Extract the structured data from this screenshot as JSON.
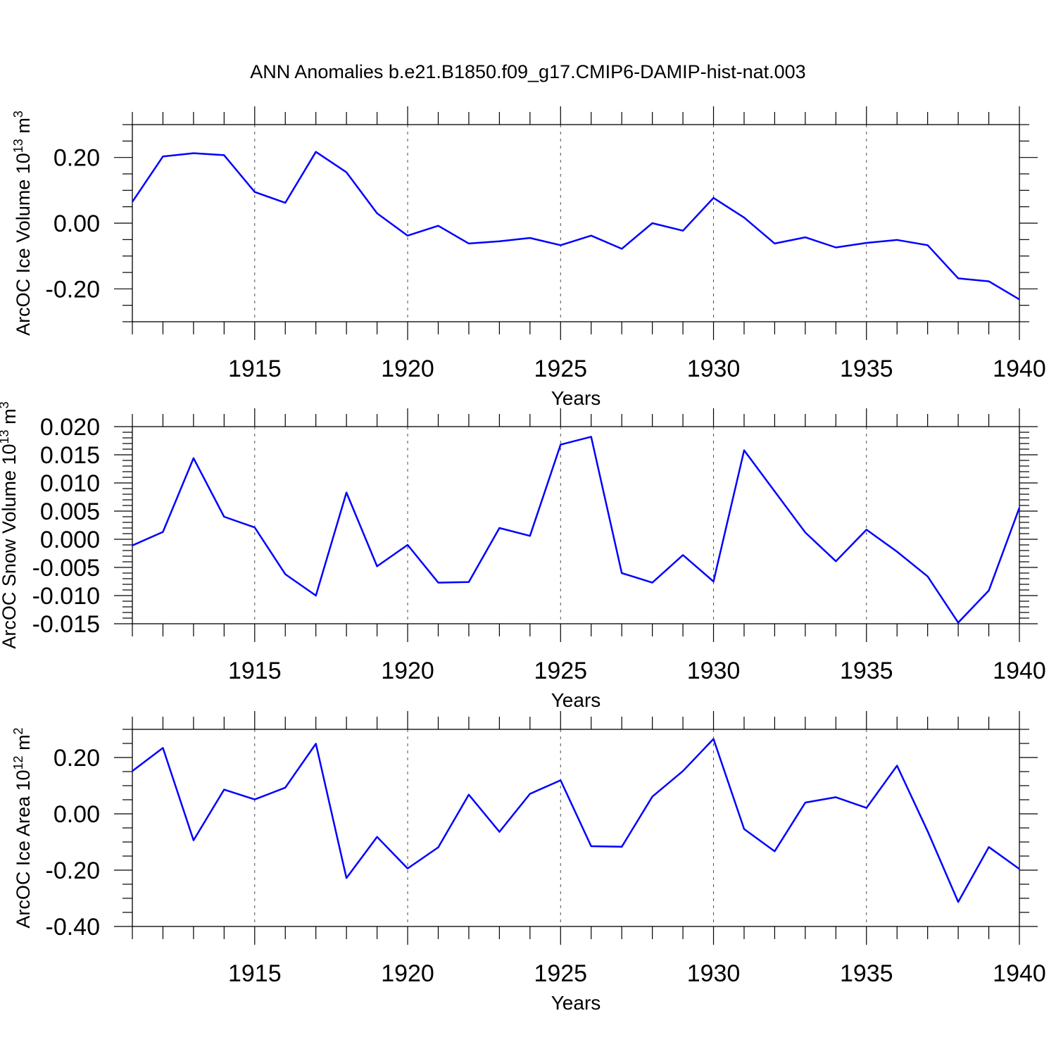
{
  "title": "ANN Anomalies b.e21.B1850.f09_g17.CMIP6-DAMIP-hist-nat.003",
  "colors": {
    "series": "#0000ff",
    "axis": "#000000"
  },
  "chart_data": [
    {
      "type": "line",
      "ylabel_main": "ArcOC Ice Volume 10",
      "ylabel_sup": "13",
      "ylabel_unit": " m",
      "ylabel_unit_sup": "3",
      "xlabel": "Years",
      "xlim": [
        1911,
        1940
      ],
      "ylim": [
        -0.3,
        0.3
      ],
      "x_ticks": [
        1915,
        1920,
        1925,
        1930,
        1935,
        1940
      ],
      "x_tick_labels": [
        "1915",
        "1920",
        "1925",
        "1930",
        "1935",
        "1940"
      ],
      "y_ticks": [
        -0.2,
        0.0,
        0.2
      ],
      "y_tick_labels": [
        "-0.20",
        "0.00",
        "0.20"
      ],
      "y_minor_step": 0.05,
      "x": [
        1911,
        1912,
        1913,
        1914,
        1915,
        1916,
        1917,
        1918,
        1919,
        1920,
        1921,
        1922,
        1923,
        1924,
        1925,
        1926,
        1927,
        1928,
        1929,
        1930,
        1931,
        1932,
        1933,
        1934,
        1935,
        1936,
        1937,
        1938,
        1939,
        1940
      ],
      "values": [
        0.065,
        0.203,
        0.213,
        0.207,
        0.095,
        0.062,
        0.217,
        0.155,
        0.03,
        -0.038,
        -0.008,
        -0.062,
        -0.055,
        -0.045,
        -0.067,
        -0.038,
        -0.078,
        0.0,
        -0.023,
        0.077,
        0.017,
        -0.062,
        -0.043,
        -0.074,
        -0.06,
        -0.051,
        -0.067,
        -0.168,
        -0.177,
        -0.232
      ]
    },
    {
      "type": "line",
      "ylabel_main": "ArcOC Snow Volume 10",
      "ylabel_sup": "13",
      "ylabel_unit": " m",
      "ylabel_unit_sup": "3",
      "xlabel": "Years",
      "xlim": [
        1911,
        1940
      ],
      "ylim": [
        -0.015,
        0.02
      ],
      "x_ticks": [
        1915,
        1920,
        1925,
        1930,
        1935,
        1940
      ],
      "x_tick_labels": [
        "1915",
        "1920",
        "1925",
        "1930",
        "1935",
        "1940"
      ],
      "y_ticks": [
        -0.015,
        -0.01,
        -0.005,
        0.0,
        0.005,
        0.01,
        0.015,
        0.02
      ],
      "y_tick_labels": [
        "-0.015",
        "-0.010",
        "-0.005",
        "0.000",
        "0.005",
        "0.010",
        "0.015",
        "0.020"
      ],
      "y_minor_step": 0.001,
      "x": [
        1911,
        1912,
        1913,
        1914,
        1915,
        1916,
        1917,
        1918,
        1919,
        1920,
        1921,
        1922,
        1923,
        1924,
        1925,
        1926,
        1927,
        1928,
        1929,
        1930,
        1931,
        1932,
        1933,
        1934,
        1935,
        1936,
        1937,
        1938,
        1939,
        1940
      ],
      "values": [
        -0.0011,
        0.0013,
        0.0144,
        0.004,
        0.0021,
        -0.0062,
        -0.01,
        0.0083,
        -0.0048,
        -0.001,
        -0.0077,
        -0.0076,
        0.002,
        0.0006,
        0.0168,
        0.0182,
        -0.006,
        -0.0077,
        -0.0028,
        -0.0075,
        0.0158,
        0.0085,
        0.0012,
        -0.0039,
        0.0017,
        -0.0022,
        -0.0066,
        -0.0148,
        -0.0091,
        0.0056
      ]
    },
    {
      "type": "line",
      "ylabel_main": "ArcOC Ice Area 10",
      "ylabel_sup": "12",
      "ylabel_unit": " m",
      "ylabel_unit_sup": "2",
      "xlabel": "Years",
      "xlim": [
        1911,
        1940
      ],
      "ylim": [
        -0.4,
        0.3
      ],
      "x_ticks": [
        1915,
        1920,
        1925,
        1930,
        1935,
        1940
      ],
      "x_tick_labels": [
        "1915",
        "1920",
        "1925",
        "1930",
        "1935",
        "1940"
      ],
      "y_ticks": [
        -0.4,
        -0.2,
        0.0,
        0.2
      ],
      "y_tick_labels": [
        "-0.40",
        "-0.20",
        "0.00",
        "0.20"
      ],
      "y_minor_step": 0.05,
      "x": [
        1911,
        1912,
        1913,
        1914,
        1915,
        1916,
        1917,
        1918,
        1919,
        1920,
        1921,
        1922,
        1923,
        1924,
        1925,
        1926,
        1927,
        1928,
        1929,
        1930,
        1931,
        1932,
        1933,
        1934,
        1935,
        1936,
        1937,
        1938,
        1939,
        1940
      ],
      "values": [
        0.152,
        0.234,
        -0.094,
        0.086,
        0.051,
        0.093,
        0.249,
        -0.228,
        -0.082,
        -0.194,
        -0.119,
        0.068,
        -0.064,
        0.071,
        0.119,
        -0.115,
        -0.117,
        0.061,
        0.152,
        0.266,
        -0.054,
        -0.133,
        0.04,
        0.059,
        0.021,
        0.171,
        -0.062,
        -0.313,
        -0.118,
        -0.196
      ]
    }
  ]
}
